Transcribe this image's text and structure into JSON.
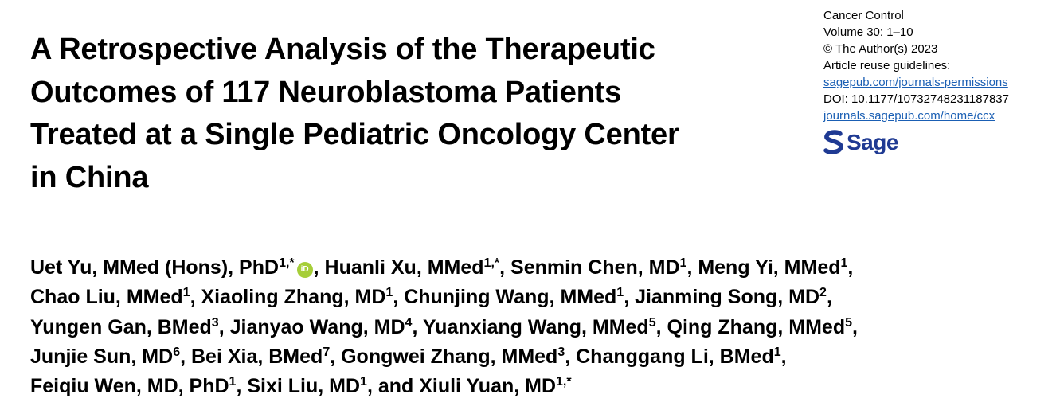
{
  "title_lines": [
    "A Retrospective Analysis of the Therapeutic",
    "Outcomes of 117 Neuroblastoma Patients",
    "Treated at a Single Pediatric Oncology Center",
    "in China"
  ],
  "journal_meta": {
    "journal": "Cancer Control",
    "volume": "Volume 30: 1–10",
    "copyright": "© The Author(s) 2023",
    "reuse_label": "Article reuse guidelines:",
    "permissions_link": "sagepub.com/journals-permissions",
    "doi": "DOI: 10.1177/10732748231187837",
    "journal_link": "journals.sagepub.com/home/ccx"
  },
  "publisher_logo": {
    "text": "Sage",
    "color": "#1f3a93"
  },
  "orcid_icon": {
    "text": "iD",
    "color": "#a6ce39"
  },
  "authors": {
    "line1": {
      "a1": "Uet Yu, MMed (Hons), PhD",
      "a1_sup": "1,*",
      "a2": ", Huanli Xu, MMed",
      "a2_sup": "1,*",
      "a3": ", Senmin Chen, MD",
      "a3_sup": "1",
      "a4": ", Meng Yi, MMed",
      "a4_sup": "1",
      "end": ","
    },
    "line2": {
      "a1": "Chao Liu, MMed",
      "a1_sup": "1",
      "a2": ", Xiaoling Zhang, MD",
      "a2_sup": "1",
      "a3": ", Chunjing Wang, MMed",
      "a3_sup": "1",
      "a4": ", Jianming Song, MD",
      "a4_sup": "2",
      "end": ","
    },
    "line3": {
      "a1": "Yungen Gan, BMed",
      "a1_sup": "3",
      "a2": ", Jianyao Wang, MD",
      "a2_sup": "4",
      "a3": ", Yuanxiang Wang, MMed",
      "a3_sup": "5",
      "a4": ", Qing Zhang, MMed",
      "a4_sup": "5",
      "end": ","
    },
    "line4": {
      "a1": "Junjie Sun, MD",
      "a1_sup": "6",
      "a2": ", Bei Xia, BMed",
      "a2_sup": "7",
      "a3": ", Gongwei Zhang, MMed",
      "a3_sup": "3",
      "a4": ", Changgang Li, BMed",
      "a4_sup": "1",
      "end": ","
    },
    "line5": {
      "a1": "Feiqiu Wen, MD, PhD",
      "a1_sup": "1",
      "a2": ", Sixi Liu, MD",
      "a2_sup": "1",
      "a3": ", and Xiuli Yuan, MD",
      "a3_sup": "1,*"
    }
  }
}
